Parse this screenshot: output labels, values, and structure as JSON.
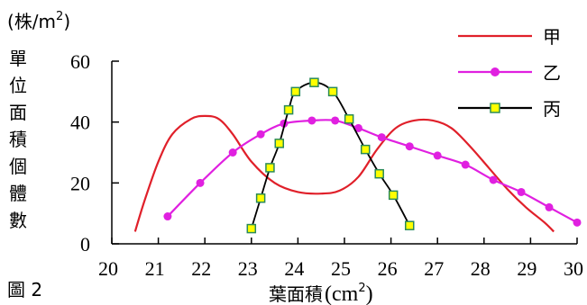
{
  "chart_data": {
    "type": "line",
    "title": "",
    "ylabel_unit": "(株/m²)",
    "ylabel_chars": [
      "單",
      "位",
      "面",
      "積",
      "個",
      "體",
      "數"
    ],
    "xlabel": {
      "text": "葉面積",
      "unit_open": "(",
      "unit": "cm",
      "sup": "2",
      "unit_close": ")"
    },
    "ylabel_top": {
      "open": "(",
      "text": "株/m",
      "sup": "2",
      "close": ")"
    },
    "figure_label": "圖 2",
    "xlim": [
      20,
      30
    ],
    "ylim": [
      0,
      60
    ],
    "x_ticks": [
      "20",
      "21",
      "22",
      "23",
      "24",
      "25",
      "26",
      "27",
      "28",
      "29",
      "30"
    ],
    "y_ticks": [
      "0",
      "20",
      "40",
      "60"
    ],
    "grid": false,
    "legend_position": "top-right",
    "series": [
      {
        "name": "甲",
        "color": "#e0202a",
        "marker": "none",
        "x": [
          20.5,
          20.7,
          21.0,
          21.3,
          21.7,
          22.0,
          22.3,
          22.6,
          23.0,
          23.5,
          24.0,
          24.5,
          24.9,
          25.3,
          25.7,
          26.1,
          26.5,
          26.9,
          27.3,
          27.7,
          28.1,
          28.5,
          28.9,
          29.3,
          29.5
        ],
        "y": [
          4,
          14,
          27,
          36,
          41,
          42,
          41,
          36,
          27,
          20,
          17,
          16.5,
          17.5,
          22,
          31,
          38,
          40.5,
          40.5,
          38,
          32,
          25,
          18,
          12,
          7,
          4
        ]
      },
      {
        "name": "乙",
        "color": "#e020e0",
        "marker": "circle",
        "x": [
          21.2,
          21.9,
          22.6,
          23.2,
          23.7,
          24.3,
          24.8,
          25.3,
          25.8,
          26.4,
          27.0,
          27.6,
          28.2,
          28.8,
          29.4,
          30.0
        ],
        "y": [
          9,
          20,
          30,
          36,
          39.5,
          40.5,
          40.5,
          38,
          35,
          32,
          29,
          26,
          21,
          17,
          12,
          7
        ]
      },
      {
        "name": "丙",
        "color": "#000000",
        "marker": "square",
        "marker_fill": "#ffff00",
        "marker_stroke": "#2a8a5a",
        "x": [
          23.0,
          23.2,
          23.4,
          23.6,
          23.8,
          23.95,
          24.35,
          24.75,
          25.1,
          25.45,
          25.75,
          26.05,
          26.4
        ],
        "y": [
          5,
          15,
          25,
          33,
          44,
          50,
          53,
          50,
          41,
          31,
          23,
          16,
          6
        ]
      }
    ]
  }
}
